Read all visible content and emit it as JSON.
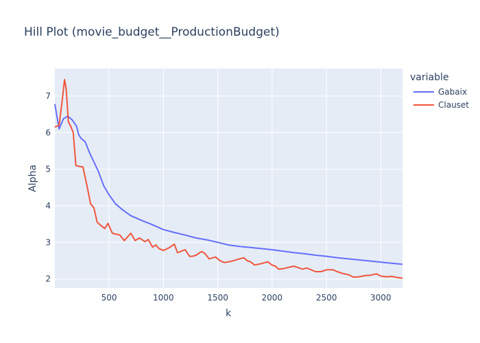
{
  "chart_data": {
    "type": "line",
    "title": "Hill Plot (movie_budget__ProductionBudget)",
    "xlabel": "k",
    "ylabel": "Alpha",
    "xlim": [
      1,
      3200
    ],
    "ylim": [
      1.75,
      7.75
    ],
    "xticks": [
      500,
      1000,
      1500,
      2000,
      2500,
      3000
    ],
    "yticks": [
      2,
      3,
      4,
      5,
      6,
      7
    ],
    "grid": true,
    "legend": {
      "title": "variable",
      "placement": "top-right"
    },
    "series": [
      {
        "name": "Gabaix",
        "color": "#636efa",
        "points": [
          [
            1,
            6.78
          ],
          [
            40,
            6.1
          ],
          [
            80,
            6.38
          ],
          [
            120,
            6.45
          ],
          [
            160,
            6.35
          ],
          [
            200,
            6.18
          ],
          [
            220,
            5.95
          ],
          [
            240,
            5.85
          ],
          [
            280,
            5.75
          ],
          [
            320,
            5.45
          ],
          [
            360,
            5.2
          ],
          [
            400,
            4.95
          ],
          [
            450,
            4.55
          ],
          [
            500,
            4.3
          ],
          [
            560,
            4.05
          ],
          [
            620,
            3.9
          ],
          [
            700,
            3.73
          ],
          [
            800,
            3.6
          ],
          [
            900,
            3.48
          ],
          [
            1000,
            3.35
          ],
          [
            1100,
            3.27
          ],
          [
            1200,
            3.2
          ],
          [
            1300,
            3.12
          ],
          [
            1400,
            3.07
          ],
          [
            1500,
            3.0
          ],
          [
            1600,
            2.93
          ],
          [
            1700,
            2.89
          ],
          [
            1800,
            2.86
          ],
          [
            1900,
            2.83
          ],
          [
            2000,
            2.8
          ],
          [
            2100,
            2.76
          ],
          [
            2200,
            2.72
          ],
          [
            2300,
            2.69
          ],
          [
            2400,
            2.65
          ],
          [
            2500,
            2.62
          ],
          [
            2600,
            2.58
          ],
          [
            2700,
            2.55
          ],
          [
            2800,
            2.52
          ],
          [
            2900,
            2.49
          ],
          [
            3000,
            2.46
          ],
          [
            3100,
            2.43
          ],
          [
            3200,
            2.4
          ]
        ]
      },
      {
        "name": "Clauset",
        "color": "#ef553b",
        "points": [
          [
            1,
            6.15
          ],
          [
            40,
            6.2
          ],
          [
            70,
            6.9
          ],
          [
            90,
            7.45
          ],
          [
            105,
            7.2
          ],
          [
            125,
            6.3
          ],
          [
            150,
            6.15
          ],
          [
            170,
            6.0
          ],
          [
            195,
            5.1
          ],
          [
            220,
            5.08
          ],
          [
            260,
            5.06
          ],
          [
            300,
            4.5
          ],
          [
            330,
            4.05
          ],
          [
            360,
            3.95
          ],
          [
            390,
            3.55
          ],
          [
            430,
            3.45
          ],
          [
            460,
            3.38
          ],
          [
            490,
            3.52
          ],
          [
            530,
            3.25
          ],
          [
            600,
            3.2
          ],
          [
            640,
            3.05
          ],
          [
            700,
            3.25
          ],
          [
            740,
            3.05
          ],
          [
            780,
            3.12
          ],
          [
            830,
            3.02
          ],
          [
            860,
            3.08
          ],
          [
            900,
            2.87
          ],
          [
            930,
            2.93
          ],
          [
            960,
            2.83
          ],
          [
            1000,
            2.78
          ],
          [
            1050,
            2.85
          ],
          [
            1100,
            2.95
          ],
          [
            1130,
            2.72
          ],
          [
            1200,
            2.8
          ],
          [
            1240,
            2.62
          ],
          [
            1270,
            2.62
          ],
          [
            1300,
            2.65
          ],
          [
            1350,
            2.75
          ],
          [
            1380,
            2.7
          ],
          [
            1420,
            2.55
          ],
          [
            1480,
            2.6
          ],
          [
            1520,
            2.5
          ],
          [
            1560,
            2.45
          ],
          [
            1620,
            2.48
          ],
          [
            1700,
            2.55
          ],
          [
            1740,
            2.58
          ],
          [
            1770,
            2.5
          ],
          [
            1800,
            2.47
          ],
          [
            1840,
            2.38
          ],
          [
            1900,
            2.42
          ],
          [
            1960,
            2.47
          ],
          [
            2000,
            2.38
          ],
          [
            2030,
            2.35
          ],
          [
            2060,
            2.27
          ],
          [
            2100,
            2.28
          ],
          [
            2200,
            2.35
          ],
          [
            2280,
            2.27
          ],
          [
            2320,
            2.3
          ],
          [
            2400,
            2.2
          ],
          [
            2450,
            2.2
          ],
          [
            2500,
            2.25
          ],
          [
            2560,
            2.25
          ],
          [
            2600,
            2.2
          ],
          [
            2650,
            2.15
          ],
          [
            2700,
            2.12
          ],
          [
            2750,
            2.05
          ],
          [
            2800,
            2.06
          ],
          [
            2850,
            2.09
          ],
          [
            2900,
            2.1
          ],
          [
            2960,
            2.14
          ],
          [
            3000,
            2.08
          ],
          [
            3050,
            2.06
          ],
          [
            3100,
            2.07
          ],
          [
            3150,
            2.04
          ],
          [
            3200,
            2.02
          ]
        ]
      }
    ]
  }
}
